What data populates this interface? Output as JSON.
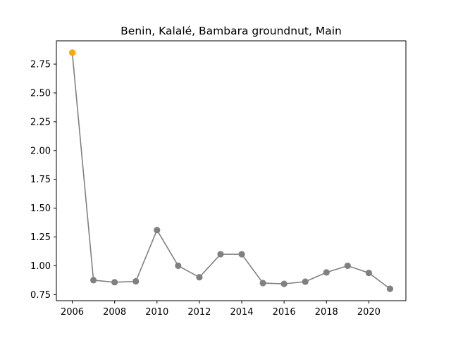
{
  "chart_data": {
    "type": "line",
    "title": "Benin, Kalalé, Bambara groundnut, Main",
    "xlabel": "",
    "ylabel": "",
    "x": [
      2006,
      2007,
      2008,
      2009,
      2010,
      2011,
      2012,
      2013,
      2014,
      2015,
      2016,
      2017,
      2018,
      2019,
      2020,
      2021
    ],
    "values": [
      2.85,
      0.875,
      0.857,
      0.865,
      1.31,
      1.0,
      0.9,
      1.1,
      1.1,
      0.85,
      0.843,
      0.862,
      0.942,
      1.0,
      0.938,
      0.8
    ],
    "highlight_index": 0,
    "xlim": [
      2005.25,
      2021.75
    ],
    "ylim": [
      0.697,
      2.952
    ],
    "xticks": [
      2006,
      2008,
      2010,
      2012,
      2014,
      2016,
      2018,
      2020
    ],
    "yticks": [
      0.75,
      1.0,
      1.25,
      1.5,
      1.75,
      2.0,
      2.25,
      2.5,
      2.75
    ],
    "ytick_labels": [
      "0.75",
      "1.00",
      "1.25",
      "1.50",
      "1.75",
      "2.00",
      "2.25",
      "2.50",
      "2.75"
    ],
    "grid": false,
    "colors": {
      "line": "#808080",
      "marker": "#808080",
      "highlight": "#ffa500"
    }
  }
}
